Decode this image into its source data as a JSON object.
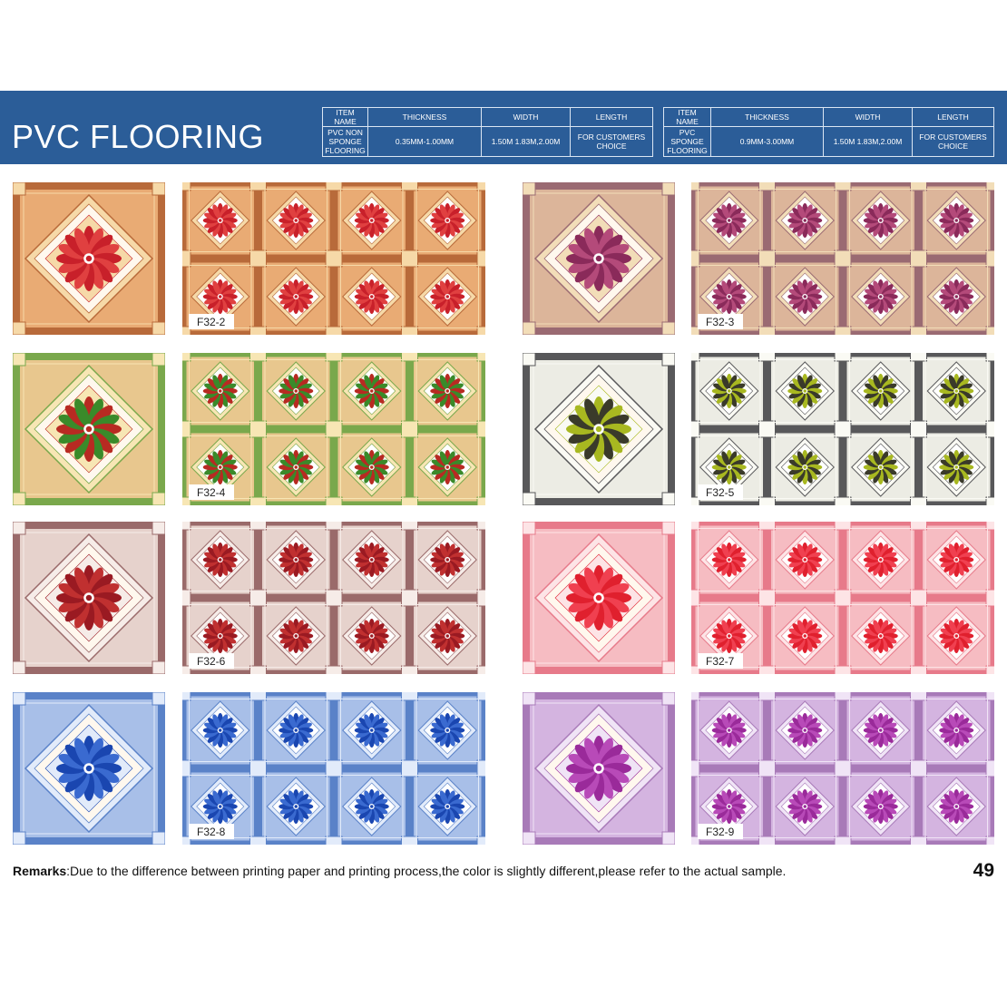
{
  "header": {
    "title": "PVC FLOORING",
    "tables": [
      {
        "headers": [
          "ITEM NAME",
          "THICKNESS",
          "WIDTH",
          "LENGTH"
        ],
        "row": [
          "PVC NON SPONGE FLOORING",
          "0.35MM-1.00MM",
          "1.50M 1.83M,2.00M",
          "FOR CUSTOMERS CHOICE"
        ]
      },
      {
        "headers": [
          "ITEM NAME",
          "THICKNESS",
          "WIDTH",
          "LENGTH"
        ],
        "row": [
          "PVC SPONGE FLOORING",
          "0.9MM-3.00MM",
          "1.50M 1.83M,2.00M",
          "FOR CUSTOMERS CHOICE"
        ]
      }
    ]
  },
  "tiles": [
    {
      "code": "F32-2",
      "colors": {
        "bg": "#e9ab74",
        "band": "#b86a3a",
        "light": "#f6d9a8",
        "flower": "#c8202a",
        "flower2": "#e04040"
      }
    },
    {
      "code": "F32-3",
      "colors": {
        "bg": "#dcb59a",
        "band": "#9a6a72",
        "light": "#f2ddb8",
        "flower": "#8a2a5a",
        "flower2": "#b44a7a"
      }
    },
    {
      "code": "F32-4",
      "colors": {
        "bg": "#e8c78e",
        "band": "#7aa84c",
        "light": "#f7e6b4",
        "flower": "#b82a22",
        "flower2": "#3a8a2a"
      }
    },
    {
      "code": "F32-5",
      "colors": {
        "bg": "#ecece4",
        "band": "#58585a",
        "light": "#fafaf4",
        "flower": "#a8b820",
        "flower2": "#3a3a2a"
      }
    },
    {
      "code": "F32-6",
      "colors": {
        "bg": "#e6d2cc",
        "band": "#9a6a6a",
        "light": "#f6ece8",
        "flower": "#9a1a22",
        "flower2": "#c03030"
      }
    },
    {
      "code": "F32-7",
      "colors": {
        "bg": "#f6bcc2",
        "band": "#e77a8a",
        "light": "#fde4e6",
        "flower": "#e0202e",
        "flower2": "#f04050"
      }
    },
    {
      "code": "F32-8",
      "colors": {
        "bg": "#a8bfe8",
        "band": "#5a82c8",
        "light": "#e2ebfa",
        "flower": "#1a46b0",
        "flower2": "#3a6ad0"
      }
    },
    {
      "code": "F32-9",
      "colors": {
        "bg": "#d4b4e0",
        "band": "#a87ab8",
        "light": "#f0e4f6",
        "flower": "#9a2a9a",
        "flower2": "#b84ab8"
      }
    }
  ],
  "footer": {
    "remarks_label": "Remarks",
    "remarks_text": ":Due to the difference between printing paper and printing process,the color is slightly different,please refer to the actual sample.",
    "page_number": "49"
  }
}
